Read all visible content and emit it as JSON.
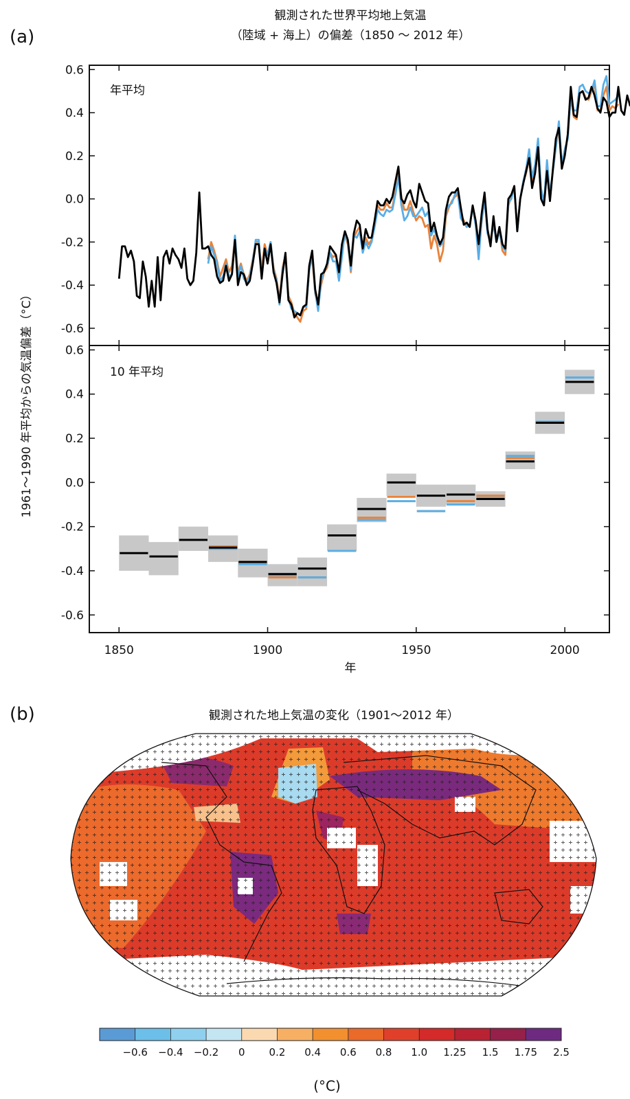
{
  "panel_a": {
    "label": "(a)",
    "title_line1": "観測された世界平均地上気温",
    "title_line2": "（陸域 + 海上）の偏差（1850 ～ 2012 年）",
    "ylabel": "1961～1990 年平均からの気温偏差（°C）",
    "xlabel": "年"
  },
  "panel_b": {
    "label": "(b)",
    "title": "観測された地上気温の変化（1901～2012 年）",
    "colorbar_ticks": [
      "−0.6",
      "−0.4",
      "−0.2",
      "0",
      "0.2",
      "0.4",
      "0.6",
      "0.8",
      "1.0",
      "1.25",
      "1.5",
      "1.75",
      "2.5"
    ],
    "colorbar_colors": [
      "#5b9bd5",
      "#6bbfe8",
      "#8fd0ee",
      "#c4e6f3",
      "#fbd9b0",
      "#f7b063",
      "#f2902f",
      "#ea6a2a",
      "#e0402a",
      "#d42a2a",
      "#b82233",
      "#952049",
      "#6e2a80"
    ],
    "unit": "(°C)"
  },
  "chart_data": [
    {
      "type": "line",
      "panel": "annual",
      "title": "年平均",
      "xlim": [
        1840,
        2015
      ],
      "ylim": [
        -0.68,
        0.62
      ],
      "xticks": [
        1850,
        1900,
        1950,
        2000
      ],
      "yticks": [
        -0.6,
        -0.4,
        -0.2,
        0.0,
        0.2,
        0.4,
        0.6
      ],
      "ytick_labels": [
        "-0.6",
        "-0.4",
        "-0.2",
        "0.0",
        "0.2",
        "0.4",
        "0.6"
      ],
      "xtick_labels": [
        "1850",
        "1900",
        "1950",
        "2000"
      ],
      "series": [
        {
          "color": "#000000",
          "start": 1850,
          "values": [
            -0.37,
            -0.22,
            -0.22,
            -0.27,
            -0.24,
            -0.29,
            -0.45,
            -0.46,
            -0.29,
            -0.36,
            -0.5,
            -0.38,
            -0.5,
            -0.27,
            -0.47,
            -0.27,
            -0.24,
            -0.3,
            -0.23,
            -0.26,
            -0.28,
            -0.32,
            -0.23,
            -0.37,
            -0.4,
            -0.38,
            -0.25,
            0.03,
            -0.23,
            -0.23,
            -0.22,
            -0.26,
            -0.28,
            -0.36,
            -0.39,
            -0.38,
            -0.31,
            -0.38,
            -0.35,
            -0.19,
            -0.4,
            -0.34,
            -0.35,
            -0.4,
            -0.38,
            -0.3,
            -0.21,
            -0.21,
            -0.37,
            -0.23,
            -0.3,
            -0.21,
            -0.34,
            -0.39,
            -0.48,
            -0.35,
            -0.25,
            -0.47,
            -0.49,
            -0.55,
            -0.53,
            -0.54,
            -0.5,
            -0.49,
            -0.31,
            -0.24,
            -0.42,
            -0.49,
            -0.35,
            -0.34,
            -0.3,
            -0.22,
            -0.24,
            -0.26,
            -0.34,
            -0.21,
            -0.15,
            -0.19,
            -0.31,
            -0.16,
            -0.1,
            -0.12,
            -0.23,
            -0.14,
            -0.18,
            -0.18,
            -0.1,
            -0.01,
            -0.03,
            -0.03,
            0.0,
            -0.02,
            0.01,
            0.08,
            0.15,
            0.0,
            -0.02,
            0.02,
            0.04,
            -0.01,
            -0.04,
            0.07,
            0.03,
            -0.01,
            -0.02,
            -0.15,
            -0.11,
            -0.17,
            -0.21,
            -0.18,
            -0.05,
            0.01,
            0.03,
            0.03,
            0.05,
            -0.04,
            -0.12,
            -0.11,
            -0.13,
            -0.03,
            -0.1,
            -0.21,
            -0.07,
            0.03,
            -0.14,
            -0.22,
            -0.08,
            -0.2,
            -0.13,
            -0.21,
            -0.23,
            0.0,
            0.02,
            0.06,
            -0.15,
            0.0,
            0.07,
            0.13,
            0.19,
            0.05,
            0.12,
            0.24,
            0.0,
            -0.03,
            0.13,
            -0.01,
            0.14,
            0.28,
            0.33,
            0.14,
            0.2,
            0.3,
            0.52,
            0.39,
            0.38,
            0.49,
            0.5,
            0.46,
            0.47,
            0.52,
            0.48,
            0.42,
            0.4,
            0.47,
            0.45,
            0.38,
            0.4,
            0.4,
            0.52,
            0.41,
            0.39,
            0.48,
            0.43
          ]
        },
        {
          "color": "#5aaee6",
          "start": 1880,
          "values": [
            -0.3,
            -0.22,
            -0.26,
            -0.3,
            -0.38,
            -0.36,
            -0.3,
            -0.36,
            -0.35,
            -0.17,
            -0.36,
            -0.31,
            -0.37,
            -0.39,
            -0.36,
            -0.29,
            -0.19,
            -0.19,
            -0.36,
            -0.23,
            -0.26,
            -0.2,
            -0.33,
            -0.38,
            -0.49,
            -0.33,
            -0.27,
            -0.46,
            -0.51,
            -0.52,
            -0.53,
            -0.54,
            -0.5,
            -0.5,
            -0.33,
            -0.25,
            -0.43,
            -0.52,
            -0.38,
            -0.33,
            -0.31,
            -0.25,
            -0.29,
            -0.29,
            -0.38,
            -0.27,
            -0.15,
            -0.2,
            -0.33,
            -0.17,
            -0.18,
            -0.15,
            -0.25,
            -0.2,
            -0.23,
            -0.2,
            -0.13,
            -0.05,
            -0.07,
            -0.08,
            -0.05,
            -0.06,
            -0.05,
            0.02,
            0.1,
            -0.03,
            -0.1,
            -0.08,
            -0.04,
            -0.08,
            -0.08,
            -0.06,
            -0.04,
            -0.08,
            -0.06,
            -0.17,
            -0.14,
            -0.18,
            -0.22,
            -0.2,
            -0.06,
            -0.03,
            -0.02,
            0.02,
            0.03,
            -0.09,
            -0.11,
            -0.13,
            -0.12,
            -0.04,
            -0.12,
            -0.28,
            -0.1,
            0.0,
            -0.16,
            -0.2,
            -0.11,
            -0.2,
            -0.15,
            -0.22,
            -0.24,
            -0.02,
            0.0,
            0.06,
            -0.15,
            0.0,
            0.08,
            0.14,
            0.23,
            0.1,
            0.16,
            0.28,
            0.05,
            -0.02,
            0.18,
            0.02,
            0.13,
            0.24,
            0.36,
            0.16,
            0.23,
            0.28,
            0.48,
            0.41,
            0.41,
            0.52,
            0.53,
            0.5,
            0.49,
            0.5,
            0.55,
            0.43,
            0.43,
            0.53,
            0.57,
            0.44,
            0.45,
            0.46,
            0.48
          ]
        },
        {
          "color": "#e8823a",
          "start": 1880,
          "values": [
            -0.28,
            -0.2,
            -0.24,
            -0.29,
            -0.36,
            -0.32,
            -0.28,
            -0.34,
            -0.31,
            -0.18,
            -0.34,
            -0.3,
            -0.35,
            -0.38,
            -0.35,
            -0.28,
            -0.2,
            -0.2,
            -0.33,
            -0.21,
            -0.26,
            -0.2,
            -0.32,
            -0.37,
            -0.47,
            -0.32,
            -0.26,
            -0.45,
            -0.48,
            -0.53,
            -0.55,
            -0.57,
            -0.52,
            -0.51,
            -0.33,
            -0.27,
            -0.44,
            -0.49,
            -0.4,
            -0.34,
            -0.32,
            -0.25,
            -0.27,
            -0.26,
            -0.36,
            -0.24,
            -0.17,
            -0.21,
            -0.34,
            -0.18,
            -0.15,
            -0.13,
            -0.23,
            -0.18,
            -0.21,
            -0.19,
            -0.1,
            -0.03,
            -0.05,
            -0.05,
            -0.02,
            -0.04,
            -0.04,
            0.04,
            0.12,
            0.01,
            -0.05,
            -0.05,
            -0.01,
            -0.06,
            -0.1,
            -0.08,
            -0.09,
            -0.13,
            -0.12,
            -0.23,
            -0.17,
            -0.21,
            -0.29,
            -0.24,
            -0.08,
            -0.04,
            -0.01,
            0.01,
            0.02,
            -0.07,
            -0.1,
            -0.13,
            -0.12,
            -0.04,
            -0.11,
            -0.24,
            -0.11,
            0.01,
            -0.15,
            -0.19,
            -0.12,
            -0.19,
            -0.14,
            -0.24,
            -0.26,
            -0.03,
            0.01,
            0.05,
            -0.14,
            0.0,
            0.08,
            0.12,
            0.19,
            0.07,
            0.13,
            0.23,
            0.01,
            -0.01,
            0.14,
            0.0,
            0.13,
            0.24,
            0.34,
            0.14,
            0.21,
            0.29,
            0.48,
            0.38,
            0.37,
            0.49,
            0.5,
            0.47,
            0.46,
            0.5,
            0.53,
            0.41,
            0.41,
            0.48,
            0.52,
            0.41,
            0.43,
            0.42,
            0.44
          ]
        }
      ]
    },
    {
      "type": "bar",
      "panel": "decadal",
      "title": "10 年平均",
      "xlim": [
        1840,
        2015
      ],
      "ylim": [
        -0.68,
        0.62
      ],
      "xticks": [
        1850,
        1900,
        1950,
        2000
      ],
      "yticks": [
        -0.6,
        -0.4,
        -0.2,
        0.0,
        0.2,
        0.4,
        0.6
      ],
      "ytick_labels": [
        "-0.6",
        "-0.4",
        "-0.2",
        "0.0",
        "0.2",
        "0.4",
        "0.6"
      ],
      "xtick_labels": [
        "1850",
        "1900",
        "1950",
        "2000"
      ],
      "decades": [
        1850,
        1860,
        1870,
        1880,
        1890,
        1900,
        1910,
        1920,
        1930,
        1940,
        1950,
        1960,
        1970,
        1980,
        1990,
        2000
      ],
      "uncertainty_low": [
        -0.4,
        -0.42,
        -0.31,
        -0.36,
        -0.43,
        -0.47,
        -0.47,
        -0.31,
        -0.18,
        -0.06,
        -0.11,
        -0.1,
        -0.11,
        0.06,
        0.22,
        0.4
      ],
      "uncertainty_high": [
        -0.24,
        -0.27,
        -0.2,
        -0.24,
        -0.3,
        -0.37,
        -0.34,
        -0.19,
        -0.07,
        0.04,
        -0.01,
        -0.01,
        -0.04,
        0.14,
        0.32,
        0.51
      ],
      "series": [
        {
          "color": "#000000",
          "values": [
            -0.32,
            -0.335,
            -0.26,
            -0.295,
            -0.36,
            -0.415,
            -0.39,
            -0.24,
            -0.12,
            0.0,
            -0.06,
            -0.055,
            -0.075,
            0.095,
            0.27,
            0.455
          ]
        },
        {
          "color": "#5aaee6",
          "values": [
            null,
            null,
            null,
            -0.3,
            -0.37,
            -0.42,
            -0.43,
            -0.31,
            -0.17,
            -0.085,
            -0.13,
            -0.1,
            -0.07,
            0.12,
            0.275,
            0.475
          ]
        },
        {
          "color": "#e8823a",
          "values": [
            null,
            null,
            null,
            -0.29,
            -0.36,
            -0.43,
            -0.43,
            -0.31,
            -0.16,
            -0.065,
            -0.13,
            -0.085,
            -0.06,
            0.11,
            0.27,
            0.455
          ]
        }
      ]
    }
  ]
}
